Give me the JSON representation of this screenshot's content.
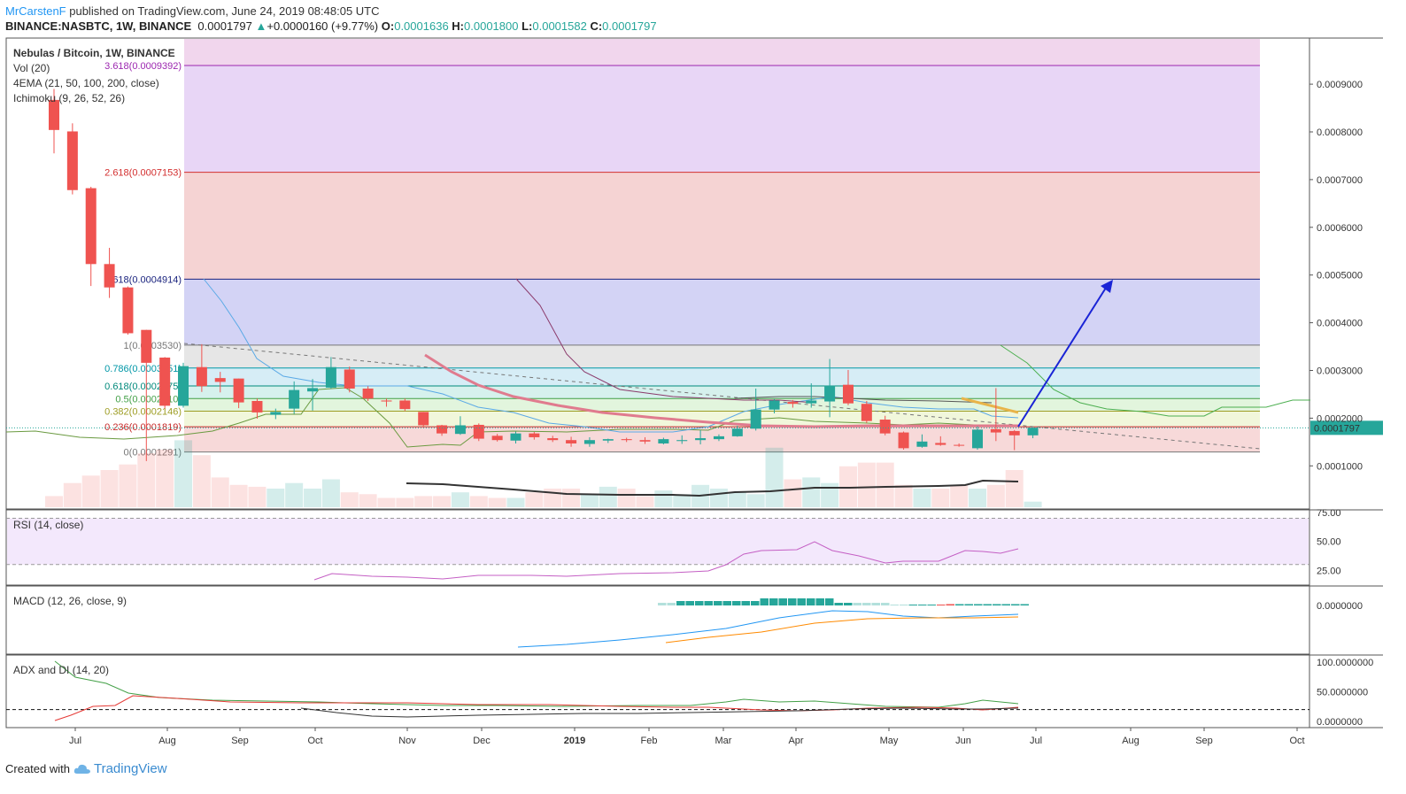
{
  "header": {
    "author": "MrCarstenF",
    "published": " published on TradingView.com, June 24, 2019 08:48:05 UTC",
    "symbol": "BINANCE:NASBTC, 1W, BINANCE",
    "last": "0.0001797",
    "change": "+0.0000160 (+9.77%)",
    "o_label": "O:",
    "o": "0.0001636",
    "h_label": "H:",
    "h": "0.0001800",
    "l_label": "L:",
    "l": "0.0001582",
    "c_label": "C:",
    "c": "0.0001797"
  },
  "legend": {
    "title": "Nebulas / Bitcoin, 1W, BINANCE",
    "vol": "Vol (20)",
    "ema": "4EMA (21, 50, 100, 200, close)",
    "ichimoku": "Ichimoku (9, 26, 52, 26)",
    "rsi": "RSI (14, close)",
    "macd": "MACD (12, 26, close, 9)",
    "adx": "ADX and DI (14, 20)"
  },
  "footer": {
    "created": "Created with",
    "brand": "TradingView"
  },
  "colors": {
    "up": "#26a69a",
    "down": "#ef5350",
    "trend_arrow": "#1a24d6",
    "ema": "#e07b8e",
    "ichimoku_base": "#7d8e3c"
  },
  "chart_data": {
    "type": "candlestick",
    "main": {
      "y_ticks": [
        "0.0009000",
        "0.0008000",
        "0.0007000",
        "0.0006000",
        "0.0005000",
        "0.0004000",
        "0.0003000",
        "0.0002000",
        "0.0001000"
      ],
      "y_tick_values": [
        0.0009,
        0.0008,
        0.0007,
        0.0006,
        0.0005,
        0.0004,
        0.0003,
        0.0002,
        0.0001
      ],
      "last_price_label": "0.0001797",
      "last_price": 0.0001797,
      "x_labels": [
        "Jul",
        "Aug",
        "Sep",
        "Oct",
        "Nov",
        "Dec",
        "2019",
        "Feb",
        "Mar",
        "Apr",
        "May",
        "Jun",
        "Jul",
        "Aug",
        "Sep",
        "Oct"
      ],
      "fib_levels": [
        {
          "label": "3.618(0.0009392)",
          "price": 0.0009392,
          "color": "#9c27b0"
        },
        {
          "label": "2.618(0.0007153)",
          "price": 0.0007153,
          "color": "#d32f2f"
        },
        {
          "label": "1.618(0.0004914)",
          "price": 0.0004914,
          "color": "#1a237e"
        },
        {
          "label": "1(0.0003530)",
          "price": 0.000353,
          "color": "#777777"
        },
        {
          "label": "0.786(0.0003051)",
          "price": 0.0003051,
          "color": "#0097a7"
        },
        {
          "label": "0.618(0.0002675)",
          "price": 0.0002675,
          "color": "#00897b"
        },
        {
          "label": "0.5(0.0002410)",
          "price": 0.000241,
          "color": "#43a047"
        },
        {
          "label": "0.382(0.0002146)",
          "price": 0.0002146,
          "color": "#9e9d24"
        },
        {
          "label": "0.236(0.0001819)",
          "price": 0.0001819,
          "color": "#c62828"
        },
        {
          "label": "0(0.0001291)",
          "price": 0.0001291,
          "color": "#777777"
        }
      ],
      "candles": [
        {
          "o": 0.000867,
          "h": 0.00089,
          "l": 0.000755,
          "c": 0.000804
        },
        {
          "o": 0.000801,
          "h": 0.000818,
          "l": 0.000669,
          "c": 0.000678
        },
        {
          "o": 0.000682,
          "h": 0.000685,
          "l": 0.000477,
          "c": 0.000523
        },
        {
          "o": 0.000523,
          "h": 0.000557,
          "l": 0.000452,
          "c": 0.000474
        },
        {
          "o": 0.000474,
          "h": 0.000476,
          "l": 0.000375,
          "c": 0.000378
        },
        {
          "o": 0.000385,
          "h": 0.000385,
          "l": 0.00011,
          "c": 0.000316
        },
        {
          "o": 0.000327,
          "h": 0.000328,
          "l": 0.00022,
          "c": 0.000226
        },
        {
          "o": 0.000226,
          "h": 0.000316,
          "l": 0.000222,
          "c": 0.000309
        },
        {
          "o": 0.000307,
          "h": 0.000355,
          "l": 0.000255,
          "c": 0.000267
        },
        {
          "o": 0.000284,
          "h": 0.000297,
          "l": 0.000254,
          "c": 0.000276
        },
        {
          "o": 0.000283,
          "h": 0.000283,
          "l": 0.000221,
          "c": 0.000233
        },
        {
          "o": 0.000236,
          "h": 0.000241,
          "l": 0.000199,
          "c": 0.000212
        },
        {
          "o": 0.000207,
          "h": 0.00022,
          "l": 0.000198,
          "c": 0.000213
        },
        {
          "o": 0.00022,
          "h": 0.000277,
          "l": 0.000209,
          "c": 0.000259
        },
        {
          "o": 0.000256,
          "h": 0.000282,
          "l": 0.000216,
          "c": 0.000263
        },
        {
          "o": 0.000264,
          "h": 0.000328,
          "l": 0.000262,
          "c": 0.000307
        },
        {
          "o": 0.000302,
          "h": 0.000308,
          "l": 0.000254,
          "c": 0.000262
        },
        {
          "o": 0.000262,
          "h": 0.000267,
          "l": 0.000236,
          "c": 0.000241
        },
        {
          "o": 0.000237,
          "h": 0.000241,
          "l": 0.000224,
          "c": 0.000235
        },
        {
          "o": 0.000237,
          "h": 0.000241,
          "l": 0.000215,
          "c": 0.000219
        },
        {
          "o": 0.000213,
          "h": 0.000213,
          "l": 0.00018,
          "c": 0.000185
        },
        {
          "o": 0.000185,
          "h": 0.000186,
          "l": 0.000163,
          "c": 0.000168
        },
        {
          "o": 0.000167,
          "h": 0.000204,
          "l": 0.000165,
          "c": 0.000185
        },
        {
          "o": 0.000186,
          "h": 0.000189,
          "l": 0.000152,
          "c": 0.000157
        },
        {
          "o": 0.000163,
          "h": 0.000167,
          "l": 0.000151,
          "c": 0.000154
        },
        {
          "o": 0.000153,
          "h": 0.000172,
          "l": 0.000147,
          "c": 0.000168
        },
        {
          "o": 0.000168,
          "h": 0.000171,
          "l": 0.000155,
          "c": 0.00016
        },
        {
          "o": 0.000158,
          "h": 0.000163,
          "l": 0.00015,
          "c": 0.000154
        },
        {
          "o": 0.000154,
          "h": 0.000161,
          "l": 0.00014,
          "c": 0.000147
        },
        {
          "o": 0.000146,
          "h": 0.00016,
          "l": 0.00014,
          "c": 0.000154
        },
        {
          "o": 0.000153,
          "h": 0.000157,
          "l": 0.000148,
          "c": 0.000156
        },
        {
          "o": 0.000156,
          "h": 0.000159,
          "l": 0.00015,
          "c": 0.000154
        },
        {
          "o": 0.000154,
          "h": 0.00016,
          "l": 0.000146,
          "c": 0.000151
        },
        {
          "o": 0.000147,
          "h": 0.000159,
          "l": 0.000145,
          "c": 0.000156
        },
        {
          "o": 0.000152,
          "h": 0.000164,
          "l": 0.000146,
          "c": 0.000154
        },
        {
          "o": 0.000154,
          "h": 0.000175,
          "l": 0.000145,
          "c": 0.000158
        },
        {
          "o": 0.000156,
          "h": 0.000166,
          "l": 0.000152,
          "c": 0.000162
        },
        {
          "o": 0.000162,
          "h": 0.000184,
          "l": 0.000161,
          "c": 0.000178
        },
        {
          "o": 0.000178,
          "h": 0.000262,
          "l": 0.000174,
          "c": 0.000218
        },
        {
          "o": 0.000218,
          "h": 0.00024,
          "l": 0.00021,
          "c": 0.000237
        },
        {
          "o": 0.000234,
          "h": 0.000238,
          "l": 0.000222,
          "c": 0.00023
        },
        {
          "o": 0.000231,
          "h": 0.000273,
          "l": 0.000222,
          "c": 0.000237
        },
        {
          "o": 0.000235,
          "h": 0.000324,
          "l": 0.000202,
          "c": 0.000268
        },
        {
          "o": 0.00027,
          "h": 0.000301,
          "l": 0.000227,
          "c": 0.000231
        },
        {
          "o": 0.00023,
          "h": 0.000236,
          "l": 0.00019,
          "c": 0.000194
        },
        {
          "o": 0.000197,
          "h": 0.000205,
          "l": 0.000164,
          "c": 0.000168
        },
        {
          "o": 0.00017,
          "h": 0.000172,
          "l": 0.000134,
          "c": 0.000137
        },
        {
          "o": 0.00014,
          "h": 0.000166,
          "l": 0.000138,
          "c": 0.000151
        },
        {
          "o": 0.000148,
          "h": 0.000162,
          "l": 0.000142,
          "c": 0.000144
        },
        {
          "o": 0.000144,
          "h": 0.000147,
          "l": 0.00014,
          "c": 0.000143
        },
        {
          "o": 0.000137,
          "h": 0.000183,
          "l": 0.000134,
          "c": 0.000176
        },
        {
          "o": 0.000177,
          "h": 0.000263,
          "l": 0.000152,
          "c": 0.00017
        },
        {
          "o": 0.000173,
          "h": 0.000175,
          "l": 0.000133,
          "c": 0.000164
        },
        {
          "o": 0.000164,
          "h": 0.00018,
          "l": 0.000158,
          "c": 0.00018
        }
      ],
      "volume": [
        6,
        13,
        17,
        20,
        23,
        29,
        31,
        36,
        28,
        16,
        12,
        11,
        10,
        13,
        10,
        15,
        8,
        7,
        5,
        5,
        6,
        6,
        8,
        6,
        5,
        5,
        8,
        10,
        10,
        7,
        11,
        10,
        6,
        9,
        7,
        12,
        10,
        8,
        7,
        32,
        15,
        16,
        13,
        22,
        24,
        24,
        12,
        10,
        10,
        12,
        10,
        12,
        20,
        3
      ]
    },
    "rsi": {
      "y_ticks": [
        "75.00",
        "50.00",
        "25.00"
      ],
      "y_tick_values": [
        75,
        50,
        25
      ],
      "band": [
        30,
        70
      ]
    },
    "macd": {
      "y_ticks": [
        "0.0000000"
      ],
      "y_tick_values": [
        0
      ]
    },
    "adx": {
      "y_ticks": [
        "100.0000000",
        "50.0000000",
        "0.0000000"
      ],
      "y_tick_values": [
        100,
        50,
        0
      ],
      "threshold": 20
    }
  }
}
